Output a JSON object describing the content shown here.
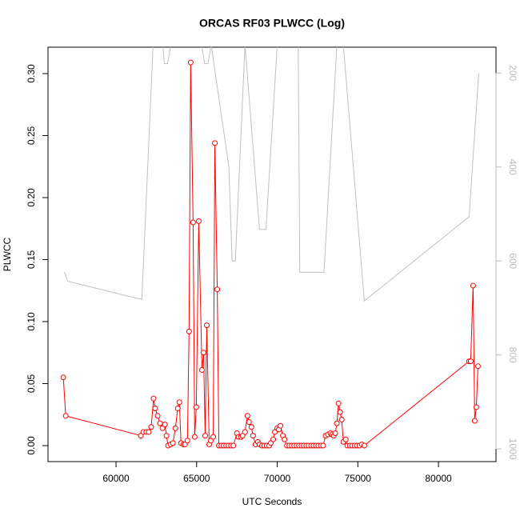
{
  "chart_data": {
    "type": "line",
    "title": "ORCAS RF03 PLWCC (Log)",
    "x_label": "UTC Seconds",
    "y_label": "PLWCC",
    "xlim": [
      55780,
      83570
    ],
    "xticks": [
      60000,
      65000,
      70000,
      75000,
      80000
    ],
    "ylim": [
      -0.0129,
      0.3213
    ],
    "yticks": [
      {
        "value": 0,
        "label": "0.00"
      },
      {
        "value": 0.05,
        "label": "0.05"
      },
      {
        "value": 0.1,
        "label": "0.10"
      },
      {
        "value": 0.15,
        "label": "0.15"
      },
      {
        "value": 0.2,
        "label": "0.20"
      },
      {
        "value": 0.25,
        "label": "0.25"
      },
      {
        "value": 0.3,
        "label": "0.30"
      }
    ],
    "y2lim": [
      1027,
      145
    ],
    "y2ticks": [
      200,
      400,
      600,
      800,
      1000
    ],
    "series": [
      {
        "color": "#ff0000",
        "markers": true,
        "x": [
          56730,
          56880,
          61540,
          61690,
          61880,
          62030,
          62180,
          62330,
          62430,
          62580,
          62730,
          62880,
          63030,
          63130,
          63230,
          63380,
          63530,
          63680,
          63830,
          63930,
          64030,
          64180,
          64280,
          64430,
          64530,
          64630,
          64780,
          64880,
          64980,
          65130,
          65330,
          65430,
          65530,
          65630,
          65780,
          65880,
          66030,
          66130,
          66280,
          66380,
          66530,
          66680,
          66830,
          66980,
          67130,
          67280,
          67500,
          67600,
          67750,
          67850,
          68000,
          68150,
          68250,
          68400,
          68500,
          68650,
          68800,
          68900,
          69050,
          69200,
          69350,
          69500,
          69600,
          69750,
          69850,
          70000,
          70100,
          70200,
          70350,
          70450,
          70600,
          70750,
          70900,
          71050,
          71200,
          71350,
          71500,
          71650,
          71800,
          71950,
          72100,
          72250,
          72400,
          72550,
          72700,
          72850,
          73000,
          73150,
          73300,
          73400,
          73500,
          73600,
          73700,
          73800,
          73900,
          74000,
          74100,
          74250,
          74350,
          74500,
          74650,
          74800,
          74950,
          75100,
          75250,
          75400,
          81900,
          82000,
          82150,
          82250,
          82350,
          82450
        ],
        "values": [
          0.055,
          0.024,
          0.008,
          0.011,
          0.011,
          0.011,
          0.015,
          0.038,
          0.03,
          0.024,
          0.018,
          0.014,
          0.017,
          0.008,
          0,
          0.001,
          0.002,
          0.014,
          0.03,
          0.035,
          0.002,
          0.001,
          0.001,
          0.004,
          0.092,
          0.309,
          0.18,
          0.007,
          0.031,
          0.181,
          0.061,
          0.075,
          0.008,
          0.097,
          0.001,
          0.004,
          0.007,
          0.244,
          0.126,
          0,
          0,
          0,
          0,
          0,
          0,
          0,
          0.01,
          0.007,
          0.007,
          0.008,
          0.011,
          0.024,
          0.019,
          0.015,
          0.008,
          0.001,
          0.003,
          0.001,
          0,
          0,
          0,
          0,
          0.002,
          0.005,
          0.011,
          0.014,
          0.013,
          0.016,
          0.008,
          0.005,
          0,
          0,
          0,
          0,
          0,
          0,
          0,
          0,
          0,
          0,
          0,
          0,
          0,
          0,
          0,
          0,
          0.008,
          0.009,
          0.01,
          0.009,
          0.008,
          0.01,
          0.018,
          0.034,
          0.027,
          0.021,
          0.003,
          0.005,
          0,
          0,
          0,
          0,
          0,
          0,
          0.001,
          0,
          0.068,
          0.068,
          0.129,
          0.02,
          0.031,
          0.064
        ]
      },
      {
        "color": "#c0c0c0",
        "axis": "y2",
        "markers": false,
        "x": [
          56800,
          57000,
          61600,
          62300,
          62900,
          63000,
          63200,
          63400,
          65300,
          65500,
          65700,
          65900,
          67000,
          67200,
          67400,
          68000,
          68900,
          69100,
          69300,
          70000,
          70700,
          71300,
          71400,
          72900,
          73700,
          74100,
          75400,
          81900,
          82500
        ],
        "values": [
          624,
          643,
          682,
          140,
          140,
          180,
          180,
          140,
          140,
          180,
          180,
          140,
          400,
          600,
          600,
          140,
          533,
          533,
          533,
          140,
          140,
          140,
          624,
          624,
          140,
          140,
          685,
          506,
          200
        ]
      }
    ]
  }
}
